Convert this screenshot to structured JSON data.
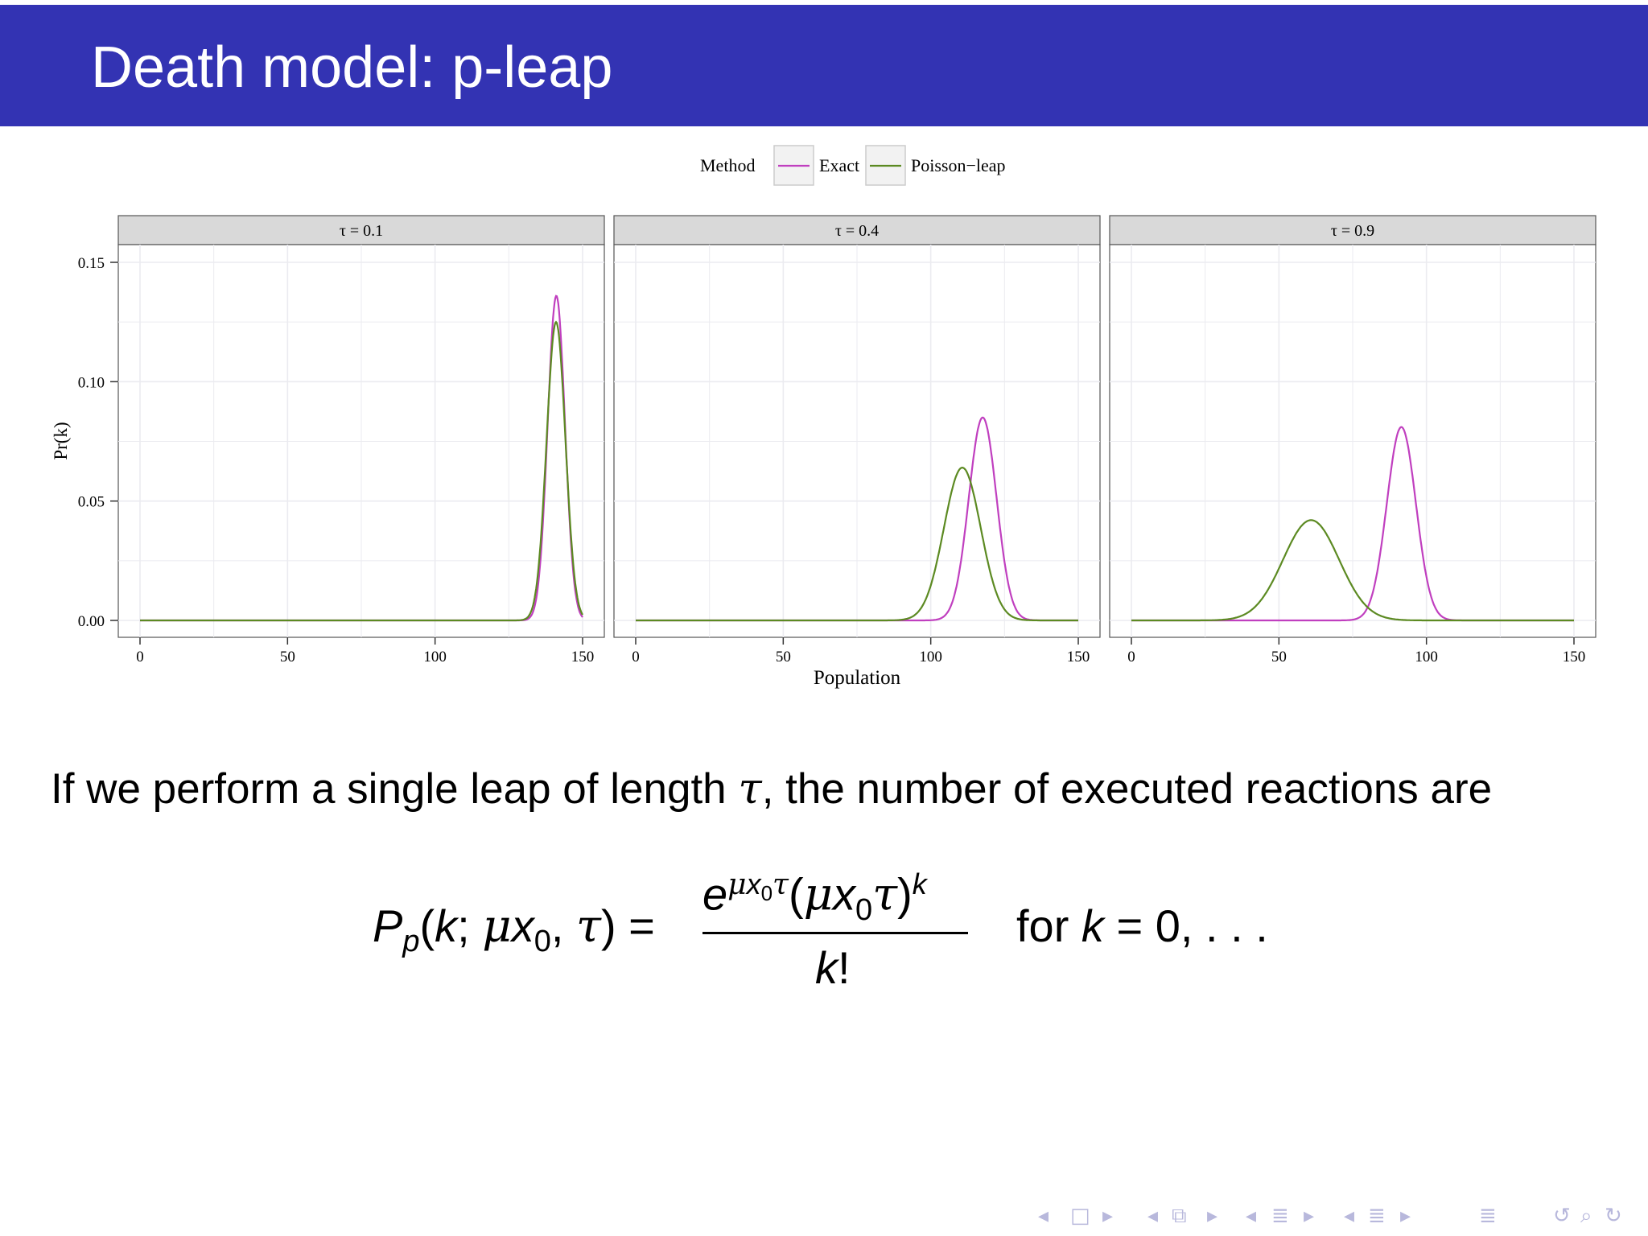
{
  "slide": {
    "title": "Death model: p-leap",
    "sentence_before": "If we perform a single leap of length ",
    "sentence_tau": "τ",
    "sentence_after": ", the number of executed reactions are",
    "formula": {
      "lhs": "Pp(k; μx0, τ) =",
      "numerator": "e^{μx0τ} (μx0τ)^k",
      "denominator": "k!",
      "condition": "for k = 0, . . ."
    }
  },
  "nav_icons": [
    "nav-prev-frame-icon",
    "nav-frame-icon",
    "nav-next-frame-icon",
    "nav-prev-subsection-icon",
    "nav-subsection-icon",
    "nav-next-subsection-icon",
    "nav-prev-section-icon",
    "nav-section-icon",
    "nav-next-section-icon",
    "nav-outline-icon",
    "nav-search-icon",
    "nav-undo-icon"
  ],
  "colors": {
    "title_bar": "#3333b3",
    "exact": "#c03fbf",
    "poisson_leap": "#5c8a22",
    "strip_bg": "#d9d9d9",
    "grid": "#ebebf0"
  },
  "chart_data": {
    "type": "line",
    "legend": {
      "title": "Method",
      "position": "top",
      "entries": [
        "Exact",
        "Poisson−leap"
      ]
    },
    "xlabel": "Population",
    "ylabel": "Pr(k)",
    "xlim": [
      0,
      150
    ],
    "ylim": [
      0,
      0.15
    ],
    "x_ticks": [
      "0",
      "50",
      "100",
      "150"
    ],
    "y_ticks": [
      "0.00",
      "0.05",
      "0.10",
      "0.15"
    ],
    "grid": true,
    "panels": [
      {
        "strip": "τ = 0.1",
        "series": [
          {
            "name": "Exact",
            "peak_x": 141.1,
            "peak_y": 0.136
          },
          {
            "name": "Poisson−leap",
            "peak_x": 141.0,
            "peak_y": 0.125
          }
        ]
      },
      {
        "strip": "τ = 0.4",
        "series": [
          {
            "name": "Exact",
            "peak_x": 117.6,
            "peak_y": 0.085
          },
          {
            "name": "Poisson−leap",
            "peak_x": 110.7,
            "peak_y": 0.064
          }
        ]
      },
      {
        "strip": "τ = 0.9",
        "series": [
          {
            "name": "Exact",
            "peak_x": 91.5,
            "peak_y": 0.081
          },
          {
            "name": "Poisson−leap",
            "peak_x": 60.9,
            "peak_y": 0.042
          }
        ]
      }
    ]
  }
}
